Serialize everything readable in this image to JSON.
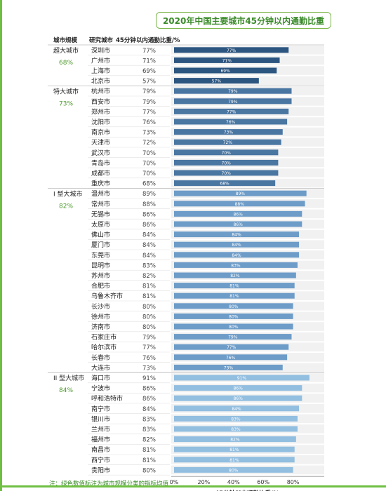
{
  "chart_data": {
    "type": "bar",
    "title": "2020年中国主要城市45分钟以内通勤比重",
    "col_header_group": "城市规模",
    "col_header_city": "研究城市",
    "col_header_value": "45分钟以内通勤比重/%",
    "xlabel": "45分钟以内通勤比重/%",
    "xlim": [
      0,
      100
    ],
    "xticks": [
      "0%",
      "20%",
      "40%",
      "60%",
      "80%"
    ],
    "xtick_values": [
      0,
      20,
      40,
      60,
      80
    ],
    "note": "注：绿色数值标注为城市规模分类的指标均值",
    "colors": {
      "超大城市": "#2c5580",
      "特大城市": "#4a76a2",
      "I型大城市": "#6d9cc8",
      "II型大城市": "#92bee0",
      "group_avg": "#4e9a2d"
    },
    "groups": [
      {
        "name": "超大城市",
        "average": "68%",
        "rows": [
          {
            "city": "深圳市",
            "value": 77,
            "label": "77%",
            "bar_label": "77%"
          },
          {
            "city": "广州市",
            "value": 71,
            "label": "71%",
            "bar_label": "71%"
          },
          {
            "city": "上海市",
            "value": 69,
            "label": "69%",
            "bar_label": "69%"
          },
          {
            "city": "北京市",
            "value": 57,
            "label": "57%",
            "bar_label": "57%"
          }
        ]
      },
      {
        "name": "特大城市",
        "average": "73%",
        "rows": [
          {
            "city": "杭州市",
            "value": 79,
            "label": "79%",
            "bar_label": "79%"
          },
          {
            "city": "西安市",
            "value": 79,
            "label": "79%",
            "bar_label": "79%"
          },
          {
            "city": "郑州市",
            "value": 77,
            "label": "77%",
            "bar_label": "77%"
          },
          {
            "city": "沈阳市",
            "value": 76,
            "label": "76%",
            "bar_label": "76%"
          },
          {
            "city": "南京市",
            "value": 73,
            "label": "73%",
            "bar_label": "73%"
          },
          {
            "city": "天津市",
            "value": 72,
            "label": "72%",
            "bar_label": "72%"
          },
          {
            "city": "武汉市",
            "value": 70,
            "label": "70%",
            "bar_label": "70%"
          },
          {
            "city": "青岛市",
            "value": 70,
            "label": "70%",
            "bar_label": "70%"
          },
          {
            "city": "成都市",
            "value": 70,
            "label": "70%",
            "bar_label": "70%"
          },
          {
            "city": "重庆市",
            "value": 68,
            "label": "68%",
            "bar_label": "68%"
          }
        ]
      },
      {
        "name": "I 型大城市",
        "average": "82%",
        "rows": [
          {
            "city": "温州市",
            "value": 89,
            "label": "89%",
            "bar_label": "89%"
          },
          {
            "city": "常州市",
            "value": 88,
            "label": "88%",
            "bar_label": "88%"
          },
          {
            "city": "无锡市",
            "value": 86,
            "label": "86%",
            "bar_label": "86%"
          },
          {
            "city": "太原市",
            "value": 86,
            "label": "86%",
            "bar_label": "86%"
          },
          {
            "city": "佛山市",
            "value": 84,
            "label": "84%",
            "bar_label": "84%"
          },
          {
            "city": "厦门市",
            "value": 84,
            "label": "84%",
            "bar_label": "84%"
          },
          {
            "city": "东莞市",
            "value": 84,
            "label": "84%",
            "bar_label": "84%"
          },
          {
            "city": "昆明市",
            "value": 83,
            "label": "83%",
            "bar_label": "83%"
          },
          {
            "city": "苏州市",
            "value": 82,
            "label": "82%",
            "bar_label": "82%"
          },
          {
            "city": "合肥市",
            "value": 81,
            "label": "81%",
            "bar_label": "81%"
          },
          {
            "city": "乌鲁木齐市",
            "value": 81,
            "label": "81%",
            "bar_label": "81%"
          },
          {
            "city": "长沙市",
            "value": 80,
            "label": "80%",
            "bar_label": "80%"
          },
          {
            "city": "徐州市",
            "value": 80,
            "label": "80%",
            "bar_label": "80%"
          },
          {
            "city": "济南市",
            "value": 80,
            "label": "80%",
            "bar_label": "80%"
          },
          {
            "city": "石家庄市",
            "value": 79,
            "label": "79%",
            "bar_label": "79%"
          },
          {
            "city": "哈尔滨市",
            "value": 77,
            "label": "77%",
            "bar_label": "77%"
          },
          {
            "city": "长春市",
            "value": 76,
            "label": "76%",
            "bar_label": "76%"
          },
          {
            "city": "大连市",
            "value": 73,
            "label": "73%",
            "bar_label": "73%"
          }
        ]
      },
      {
        "name": "II 型大城市",
        "average": "84%",
        "rows": [
          {
            "city": "海口市",
            "value": 91,
            "label": "91%",
            "bar_label": "91%"
          },
          {
            "city": "宁波市",
            "value": 86,
            "label": "86%",
            "bar_label": "86%"
          },
          {
            "city": "呼和浩特市",
            "value": 86,
            "label": "86%",
            "bar_label": "86%"
          },
          {
            "city": "南宁市",
            "value": 84,
            "label": "84%",
            "bar_label": "84%"
          },
          {
            "city": "银川市",
            "value": 83,
            "label": "83%",
            "bar_label": "83%"
          },
          {
            "city": "兰州市",
            "value": 83,
            "label": "83%",
            "bar_label": "83%"
          },
          {
            "city": "福州市",
            "value": 82,
            "label": "82%",
            "bar_label": "82%"
          },
          {
            "city": "南昌市",
            "value": 81,
            "label": "81%",
            "bar_label": "81%"
          },
          {
            "city": "西宁市",
            "value": 81,
            "label": "81%",
            "bar_label": "81%"
          },
          {
            "city": "贵阳市",
            "value": 80,
            "label": "80%",
            "bar_label": "80%"
          }
        ]
      }
    ]
  }
}
